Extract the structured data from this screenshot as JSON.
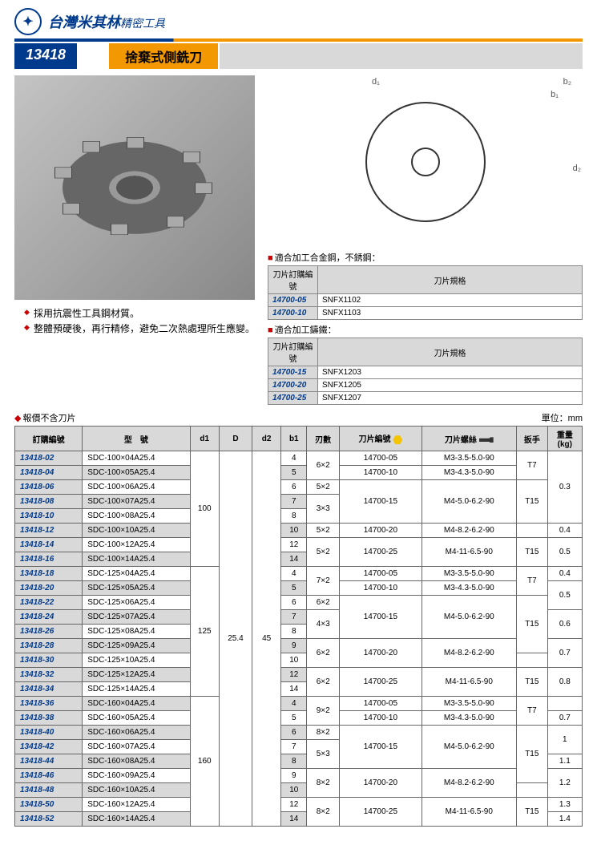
{
  "header": {
    "company": "台灣米其林",
    "company_sub": "精密工具",
    "part_number": "13418",
    "title": "捨棄式側銑刀"
  },
  "bullets": [
    "採用抗震性工具鋼材質。",
    "整體預硬後，再行精修，避免二次熱處理所生應變。"
  ],
  "diagram_labels": {
    "d1": "d₁",
    "d2": "d₂",
    "b1": "b₁",
    "b2": "b₂"
  },
  "insert_section1": {
    "label": "適合加工合金鋼，不銹鋼：",
    "th1": "刀片訂購編號",
    "th2": "刀片規格",
    "rows": [
      {
        "code": "14700-05",
        "spec": "SNFX1102"
      },
      {
        "code": "14700-10",
        "spec": "SNFX1103"
      }
    ]
  },
  "insert_section2": {
    "label": "適合加工鑄鐵：",
    "th1": "刀片訂購編號",
    "th2": "刀片規格",
    "rows": [
      {
        "code": "14700-15",
        "spec": "SNFX1203"
      },
      {
        "code": "14700-20",
        "spec": "SNFX1205"
      },
      {
        "code": "14700-25",
        "spec": "SNFX1207"
      }
    ]
  },
  "note": "報價不含刀片",
  "unit": "單位：mm",
  "main": {
    "headers": {
      "order": "訂購編號",
      "model": "型　號",
      "d1": "d1",
      "D": "D",
      "d2": "d2",
      "b1": "b1",
      "teeth": "刃數",
      "insert": "刀片編號",
      "screw": "刀片螺絲",
      "wrench": "扳手",
      "weight": "重量\n(kg)"
    },
    "D": "25.4",
    "d2": "45",
    "groups": [
      {
        "d1": "100",
        "rows": [
          {
            "on": "13418-02",
            "m": "SDC-100×04A25.4",
            "b1": "4",
            "alt": 0,
            "t": {
              "v": "6×2",
              "rs": 2
            },
            "ins": {
              "v": "14700-05",
              "rs": 1
            },
            "sc": {
              "v": "M3-3.5-5.0-90",
              "rs": 1
            },
            "wr": {
              "v": "T7",
              "rs": 2
            },
            "wt": {
              "v": "0.3",
              "rs": 5
            }
          },
          {
            "on": "13418-04",
            "m": "SDC-100×05A25.4",
            "b1": "5",
            "alt": 1,
            "ins": {
              "v": "14700-10",
              "rs": 1
            },
            "sc": {
              "v": "M3-4.3-5.0-90",
              "rs": 1
            }
          },
          {
            "on": "13418-06",
            "m": "SDC-100×06A25.4",
            "b1": "6",
            "alt": 0,
            "t": {
              "v": "5×2",
              "rs": 1
            },
            "ins": {
              "v": "14700-15",
              "rs": 3
            },
            "sc": {
              "v": "M4-5.0-6.2-90",
              "rs": 3
            },
            "wr": {
              "v": "T15",
              "rs": 3
            }
          },
          {
            "on": "13418-08",
            "m": "SDC-100×07A25.4",
            "b1": "7",
            "alt": 1,
            "t": {
              "v": "3×3",
              "rs": 2
            }
          },
          {
            "on": "13418-10",
            "m": "SDC-100×08A25.4",
            "b1": "8",
            "alt": 0
          },
          {
            "on": "13418-12",
            "m": "SDC-100×10A25.4",
            "b1": "10",
            "alt": 1,
            "t": {
              "v": "5×2",
              "rs": 1
            },
            "ins": {
              "v": "14700-20",
              "rs": 1
            },
            "sc": {
              "v": "M4-8.2-6.2-90",
              "rs": 1
            },
            "wr": {
              "v": "",
              "rs": 1
            },
            "wt": {
              "v": "0.4",
              "rs": 1
            }
          },
          {
            "on": "13418-14",
            "m": "SDC-100×12A25.4",
            "b1": "12",
            "alt": 0,
            "t": {
              "v": "5×2",
              "rs": 2
            },
            "ins": {
              "v": "14700-25",
              "rs": 2
            },
            "sc": {
              "v": "M4-11-6.5-90",
              "rs": 2
            },
            "wr": {
              "v": "T15",
              "rs": 2
            },
            "wt": {
              "v": "0.5",
              "rs": 2
            }
          },
          {
            "on": "13418-16",
            "m": "SDC-100×14A25.4",
            "b1": "14",
            "alt": 1
          }
        ]
      },
      {
        "d1": "125",
        "rows": [
          {
            "on": "13418-18",
            "m": "SDC-125×04A25.4",
            "b1": "4",
            "alt": 0,
            "t": {
              "v": "7×2",
              "rs": 2
            },
            "ins": {
              "v": "14700-05",
              "rs": 1
            },
            "sc": {
              "v": "M3-3.5-5.0-90",
              "rs": 1
            },
            "wr": {
              "v": "T7",
              "rs": 2
            },
            "wt": {
              "v": "0.4",
              "rs": 1
            }
          },
          {
            "on": "13418-20",
            "m": "SDC-125×05A25.4",
            "b1": "5",
            "alt": 1,
            "ins": {
              "v": "14700-10",
              "rs": 1
            },
            "sc": {
              "v": "M3-4.3-5.0-90",
              "rs": 1
            },
            "wt": {
              "v": "0.5",
              "rs": 2
            }
          },
          {
            "on": "13418-22",
            "m": "SDC-125×06A25.4",
            "b1": "6",
            "alt": 0,
            "t": {
              "v": "6×2",
              "rs": 1
            },
            "ins": {
              "v": "14700-15",
              "rs": 3
            },
            "sc": {
              "v": "M4-5.0-6.2-90",
              "rs": 3
            },
            "wr": {
              "v": "T15",
              "rs": 4
            }
          },
          {
            "on": "13418-24",
            "m": "SDC-125×07A25.4",
            "b1": "7",
            "alt": 1,
            "t": {
              "v": "4×3",
              "rs": 2
            },
            "wt": {
              "v": "0.6",
              "rs": 2
            }
          },
          {
            "on": "13418-26",
            "m": "SDC-125×08A25.4",
            "b1": "8",
            "alt": 0
          },
          {
            "on": "13418-28",
            "m": "SDC-125×09A25.4",
            "b1": "9",
            "alt": 1,
            "t": {
              "v": "6×2",
              "rs": 2
            },
            "ins": {
              "v": "14700-20",
              "rs": 2
            },
            "sc": {
              "v": "M4-8.2-6.2-90",
              "rs": 2
            },
            "wt": {
              "v": "0.7",
              "rs": 2
            }
          },
          {
            "on": "13418-30",
            "m": "SDC-125×10A25.4",
            "b1": "10",
            "alt": 0,
            "wr": {
              "v": "",
              "rs": 1
            }
          },
          {
            "on": "13418-32",
            "m": "SDC-125×12A25.4",
            "b1": "12",
            "alt": 1,
            "t": {
              "v": "6×2",
              "rs": 2
            },
            "ins": {
              "v": "14700-25",
              "rs": 2
            },
            "sc": {
              "v": "M4-11-6.5-90",
              "rs": 2
            },
            "wr": {
              "v": "T15",
              "rs": 2
            },
            "wt": {
              "v": "0.8",
              "rs": 2
            }
          },
          {
            "on": "13418-34",
            "m": "SDC-125×14A25.4",
            "b1": "14",
            "alt": 0
          }
        ]
      },
      {
        "d1": "160",
        "rows": [
          {
            "on": "13418-36",
            "m": "SDC-160×04A25.4",
            "b1": "4",
            "alt": 1,
            "t": {
              "v": "9×2",
              "rs": 2
            },
            "ins": {
              "v": "14700-05",
              "rs": 1
            },
            "sc": {
              "v": "M3-3.5-5.0-90",
              "rs": 1
            },
            "wr": {
              "v": "T7",
              "rs": 2
            },
            "wt": {
              "v": "",
              "rs": 1
            }
          },
          {
            "on": "13418-38",
            "m": "SDC-160×05A25.4",
            "b1": "5",
            "alt": 0,
            "ins": {
              "v": "14700-10",
              "rs": 1
            },
            "sc": {
              "v": "M3-4.3-5.0-90",
              "rs": 1
            },
            "wt": {
              "v": "0.7",
              "rs": 1
            }
          },
          {
            "on": "13418-40",
            "m": "SDC-160×06A25.4",
            "b1": "6",
            "alt": 1,
            "t": {
              "v": "8×2",
              "rs": 1
            },
            "ins": {
              "v": "14700-15",
              "rs": 3
            },
            "sc": {
              "v": "M4-5.0-6.2-90",
              "rs": 3
            },
            "wr": {
              "v": "T15",
              "rs": 4
            },
            "wt": {
              "v": "1",
              "rs": 2
            }
          },
          {
            "on": "13418-42",
            "m": "SDC-160×07A25.4",
            "b1": "7",
            "alt": 0,
            "t": {
              "v": "5×3",
              "rs": 2
            }
          },
          {
            "on": "13418-44",
            "m": "SDC-160×08A25.4",
            "b1": "8",
            "alt": 1,
            "wt": {
              "v": "1.1",
              "rs": 1
            }
          },
          {
            "on": "13418-46",
            "m": "SDC-160×09A25.4",
            "b1": "9",
            "alt": 0,
            "t": {
              "v": "8×2",
              "rs": 2
            },
            "ins": {
              "v": "14700-20",
              "rs": 2
            },
            "sc": {
              "v": "M4-8.2-6.2-90",
              "rs": 2
            },
            "wt": {
              "v": "1.2",
              "rs": 2
            }
          },
          {
            "on": "13418-48",
            "m": "SDC-160×10A25.4",
            "b1": "10",
            "alt": 1,
            "wr": {
              "v": "",
              "rs": 1
            }
          },
          {
            "on": "13418-50",
            "m": "SDC-160×12A25.4",
            "b1": "12",
            "alt": 0,
            "t": {
              "v": "8×2",
              "rs": 2
            },
            "ins": {
              "v": "14700-25",
              "rs": 2
            },
            "sc": {
              "v": "M4-11-6.5-90",
              "rs": 2
            },
            "wr": {
              "v": "T15",
              "rs": 2
            },
            "wt": {
              "v": "1.3",
              "rs": 1
            }
          },
          {
            "on": "13418-52",
            "m": "SDC-160×14A25.4",
            "b1": "14",
            "alt": 1,
            "wt": {
              "v": "1.4",
              "rs": 1
            }
          }
        ]
      }
    ]
  }
}
